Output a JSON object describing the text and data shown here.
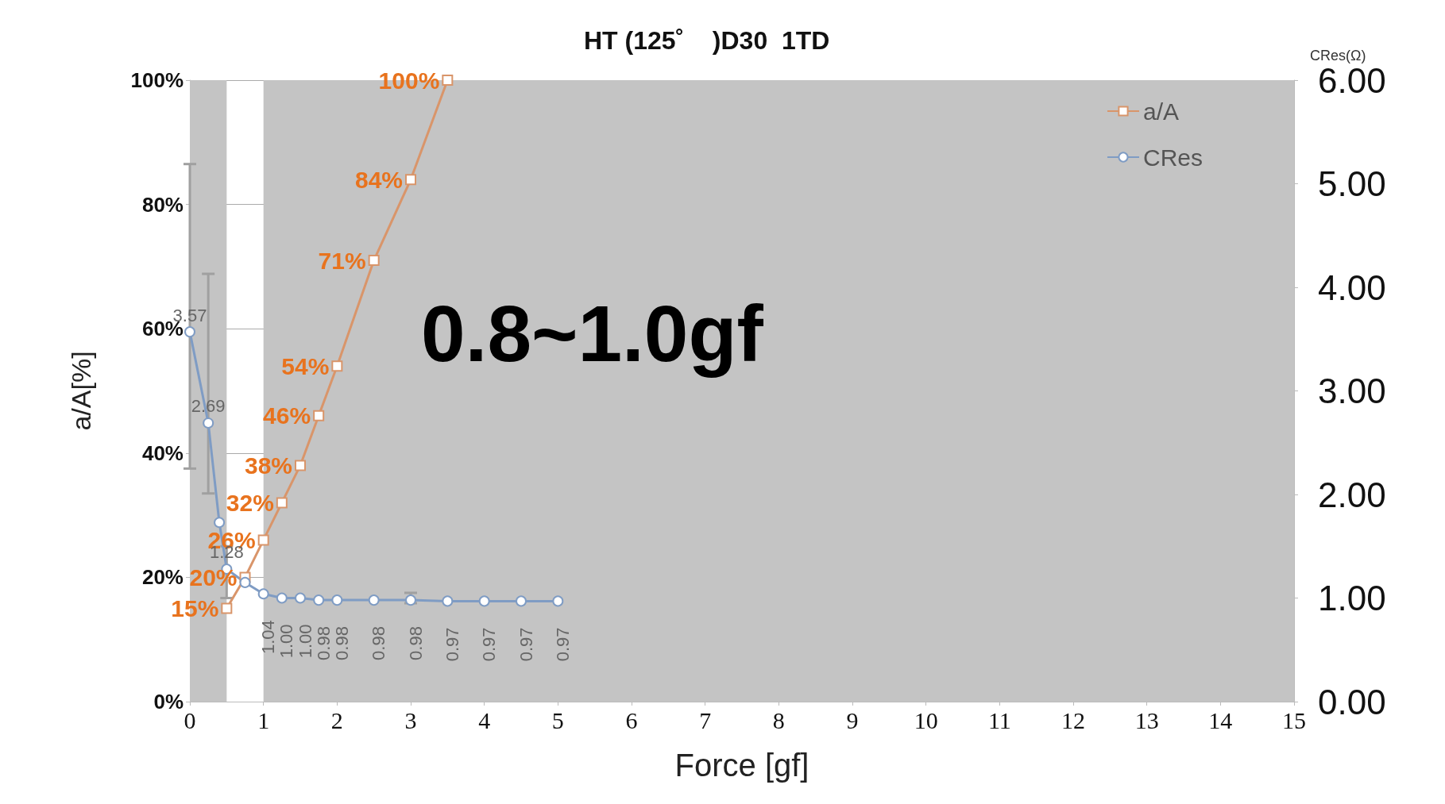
{
  "chart_data": {
    "type": "line",
    "title": "HT (125˚    )D30  1TD",
    "xlabel": "Force [gf]",
    "ylabel": "a/A[%]",
    "y2label": "CRes(Ω)",
    "xlim": [
      0,
      15
    ],
    "xticks": [
      0,
      1,
      2,
      3,
      4,
      5,
      6,
      7,
      8,
      9,
      10,
      11,
      12,
      13,
      14,
      15
    ],
    "ylim": [
      0,
      100
    ],
    "yticks": [
      {
        "value": 0,
        "label": "0%"
      },
      {
        "value": 20,
        "label": "20%"
      },
      {
        "value": 40,
        "label": "40%"
      },
      {
        "value": 60,
        "label": "60%"
      },
      {
        "value": 80,
        "label": "80%"
      },
      {
        "value": 100,
        "label": "100%"
      }
    ],
    "y2lim": [
      0,
      6
    ],
    "y2ticks": [
      {
        "value": 0,
        "label": "0.00"
      },
      {
        "value": 1,
        "label": "1.00"
      },
      {
        "value": 2,
        "label": "2.00"
      },
      {
        "value": 3,
        "label": "3.00"
      },
      {
        "value": 4,
        "label": "4.00"
      },
      {
        "value": 5,
        "label": "5.00"
      },
      {
        "value": 6,
        "label": "6.00"
      }
    ],
    "grid": "y",
    "legend": "top right",
    "line_style": "solid",
    "bands": [
      {
        "axis": "x",
        "from": 0,
        "to": 0.5,
        "color": "#c4c4c4"
      },
      {
        "axis": "x",
        "from": 1,
        "to": 15,
        "color": "#c4c4c4"
      }
    ],
    "annotations": [
      "0.8~1.0gf"
    ],
    "series": [
      {
        "name": "a/A",
        "color": "#d9956a",
        "marker": "square",
        "x": [
          0.5,
          0.75,
          1,
          1.25,
          1.5,
          1.75,
          2,
          2.5,
          3,
          3.5
        ],
        "values": [
          15,
          20,
          26,
          32,
          38,
          46,
          54,
          71,
          84,
          100
        ],
        "value_labels": [
          "15%",
          "20%",
          "26%",
          "32%",
          "38%",
          "46%",
          "54%",
          "71%",
          "84%",
          "100%"
        ]
      },
      {
        "name": "CRes",
        "color": "#7f9cc4",
        "marker": "circle",
        "axis": "y2",
        "x": [
          0,
          0.25,
          0.4,
          0.5,
          0.75,
          1,
          1.25,
          1.5,
          1.75,
          2,
          2.5,
          3,
          3.5,
          4,
          4.5,
          5
        ],
        "values": [
          3.57,
          2.69,
          1.73,
          1.28,
          1.15,
          1.04,
          1.0,
          1.0,
          0.98,
          0.98,
          0.98,
          0.98,
          0.97,
          0.97,
          0.97,
          0.97
        ],
        "value_labels": [
          "3.57",
          "2.69",
          null,
          "1.28",
          null,
          "1.04",
          "1.00",
          "1.00",
          "0.98",
          "0.98",
          "0.98",
          "0.98",
          "0.97",
          "0.97",
          "0.97",
          "0.97"
        ],
        "errors": [
          [
            2.25,
            5.19
          ],
          [
            2.01,
            4.13
          ],
          null,
          [
            1.0,
            1.5
          ],
          null,
          null,
          null,
          null,
          null,
          null,
          null,
          [
            0.95,
            1.05
          ],
          null,
          null,
          null,
          null
        ]
      }
    ]
  }
}
